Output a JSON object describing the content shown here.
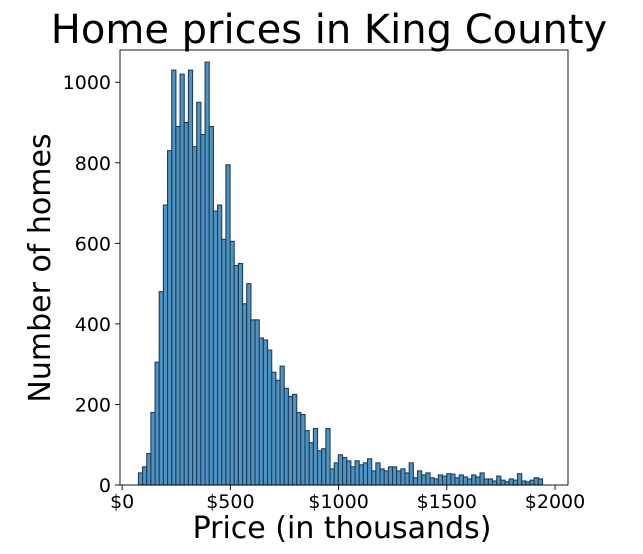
{
  "chart_data": {
    "type": "bar",
    "title": "Home prices in King County",
    "xlabel": "Price (in thousands)",
    "ylabel": "Number of homes",
    "xlim": [
      -10,
      2060
    ],
    "ylim": [
      0,
      1080
    ],
    "xticks": [
      {
        "value": 0,
        "label": "$0"
      },
      {
        "value": 500,
        "label": "$500"
      },
      {
        "value": 1000,
        "label": "$1000"
      },
      {
        "value": 1500,
        "label": "$1500"
      },
      {
        "value": 2000,
        "label": "$2000"
      }
    ],
    "yticks": [
      {
        "value": 0,
        "label": "0"
      },
      {
        "value": 200,
        "label": "200"
      },
      {
        "value": 400,
        "label": "400"
      },
      {
        "value": 600,
        "label": "600"
      },
      {
        "value": 800,
        "label": "800"
      },
      {
        "value": 1000,
        "label": "1000"
      }
    ],
    "grid": false,
    "legend": "none",
    "bar_color": "#4f93c2",
    "edge_color": "#1d3d57",
    "bin_start": 75,
    "bin_width": 19.25,
    "values": [
      30,
      45,
      78,
      180,
      305,
      480,
      695,
      830,
      1030,
      890,
      1020,
      900,
      1030,
      840,
      950,
      870,
      1050,
      890,
      680,
      695,
      610,
      795,
      605,
      545,
      550,
      450,
      500,
      410,
      410,
      365,
      360,
      335,
      280,
      260,
      295,
      240,
      220,
      225,
      180,
      175,
      135,
      105,
      140,
      85,
      90,
      140,
      40,
      55,
      75,
      68,
      60,
      45,
      60,
      50,
      55,
      65,
      35,
      55,
      40,
      35,
      45,
      45,
      35,
      40,
      30,
      55,
      18,
      35,
      25,
      30,
      18,
      15,
      25,
      22,
      28,
      27,
      18,
      25,
      20,
      15,
      25,
      20,
      30,
      15,
      15,
      10,
      22,
      12,
      8,
      15,
      12,
      28,
      10,
      8,
      12,
      18,
      15
    ]
  }
}
